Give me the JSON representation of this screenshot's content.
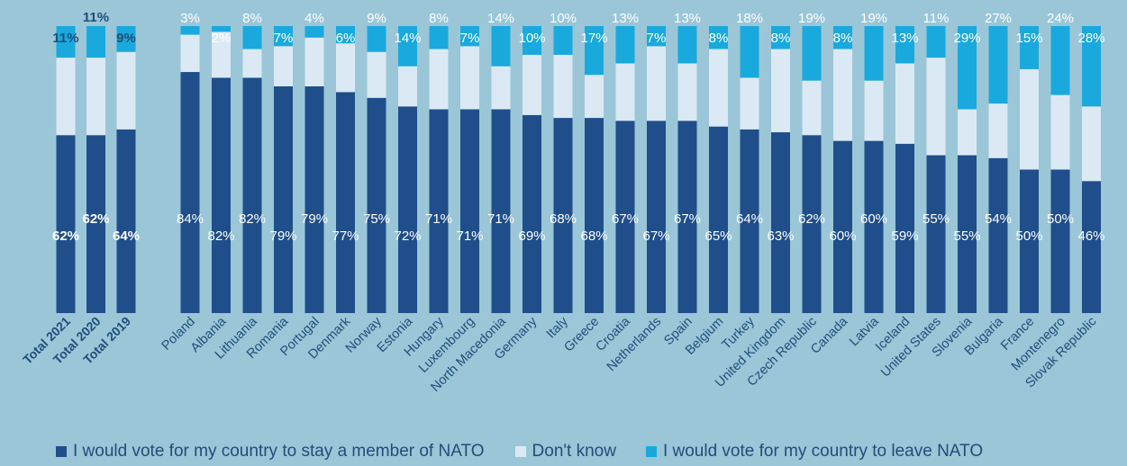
{
  "chart_data": {
    "type": "bar",
    "stacked": true,
    "percent": true,
    "categories": [
      "Total 2021",
      "Total 2020",
      "Total 2019",
      "Poland",
      "Albania",
      "Lithuania",
      "Romania",
      "Portugal",
      "Denmark",
      "Norway",
      "Estonia",
      "Hungary",
      "Luxembourg",
      "North Macedonia",
      "Germany",
      "Italy",
      "Greece",
      "Croatia",
      "Netherlands",
      "Spain",
      "Belgium",
      "Turkey",
      "United Kingdom",
      "Czech Republic",
      "Canada",
      "Latvia",
      "Iceland",
      "United States",
      "Slovenia",
      "Bulgaria",
      "France",
      "Montenegro",
      "Slovak Republic"
    ],
    "series": [
      {
        "name": "I would vote for my country to stay a member of NATO",
        "color": "#1f4e8a",
        "values": [
          62,
          62,
          64,
          84,
          82,
          82,
          79,
          79,
          77,
          75,
          72,
          71,
          71,
          71,
          69,
          68,
          68,
          67,
          67,
          67,
          65,
          64,
          63,
          62,
          60,
          60,
          59,
          55,
          55,
          54,
          50,
          50,
          46
        ]
      },
      {
        "name": "Don't know",
        "color": "#dbe9f4",
        "values": [
          27,
          27,
          27,
          13,
          16,
          10,
          14,
          17,
          17,
          16,
          14,
          21,
          22,
          15,
          21,
          22,
          15,
          20,
          26,
          20,
          27,
          18,
          29,
          19,
          32,
          21,
          28,
          34,
          16,
          19,
          35,
          26,
          26
        ]
      },
      {
        "name": "I would vote for my country to leave NATO",
        "color": "#1aa9dd",
        "values": [
          11,
          11,
          9,
          3,
          2,
          8,
          7,
          4,
          6,
          9,
          14,
          8,
          7,
          14,
          10,
          10,
          17,
          13,
          7,
          13,
          8,
          18,
          8,
          19,
          8,
          19,
          13,
          11,
          29,
          27,
          15,
          24,
          28
        ]
      }
    ],
    "ylim": [
      0,
      100
    ],
    "legend_position": "bottom",
    "grid": false
  }
}
